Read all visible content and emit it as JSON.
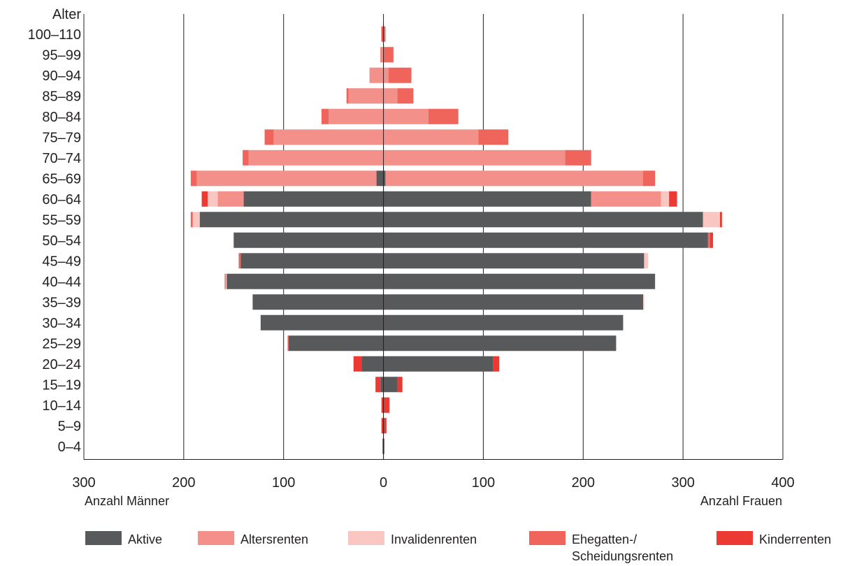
{
  "chart_data": {
    "type": "bar",
    "subtype": "population-pyramid-stacked",
    "yaxis_title": "Alter",
    "left_label": "Anzahl Männer",
    "right_label": "Anzahl Frauen",
    "x_ticks": [
      {
        "value": -300,
        "label": "300"
      },
      {
        "value": -200,
        "label": "200"
      },
      {
        "value": -100,
        "label": "100"
      },
      {
        "value": 0,
        "label": "0"
      },
      {
        "value": 100,
        "label": "100"
      },
      {
        "value": 200,
        "label": "200"
      },
      {
        "value": 300,
        "label": "300"
      },
      {
        "value": 400,
        "label": "400"
      }
    ],
    "xlim": [
      -300,
      400
    ],
    "grid": true,
    "legend_position": "bottom",
    "categories": [
      "0–4",
      "5–9",
      "10–14",
      "15–19",
      "20–24",
      "25–29",
      "30–34",
      "35–39",
      "40–44",
      "45–49",
      "50–54",
      "55–59",
      "60–64",
      "65–69",
      "70–74",
      "75–79",
      "80–84",
      "85–89",
      "90–94",
      "95–99",
      "100–110"
    ],
    "series": [
      {
        "name": "Aktive",
        "color": "#58595b",
        "men": [
          0,
          0,
          0,
          3,
          22,
          95,
          123,
          131,
          157,
          143,
          150,
          184,
          140,
          7,
          0,
          0,
          0,
          0,
          0,
          0,
          0
        ],
        "women": [
          0,
          0,
          0,
          14,
          110,
          233,
          240,
          260,
          272,
          261,
          325,
          320,
          208,
          2,
          0,
          0,
          0,
          0,
          0,
          0,
          0
        ]
      },
      {
        "name": "Altersrenten",
        "color": "#f4908a",
        "men": [
          0,
          0,
          0,
          0,
          0,
          0,
          0,
          0,
          0,
          0,
          0,
          0,
          26,
          180,
          135,
          110,
          55,
          35,
          14,
          2,
          0
        ],
        "women": [
          0,
          0,
          0,
          0,
          0,
          0,
          0,
          0,
          0,
          0,
          0,
          0,
          70,
          258,
          182,
          95,
          45,
          14,
          5,
          0,
          0
        ]
      },
      {
        "name": "Invalidenrenten",
        "color": "#fac6c2",
        "men": [
          0,
          0,
          0,
          0,
          0,
          0,
          0,
          0,
          1,
          0,
          0,
          7,
          10,
          0,
          0,
          0,
          0,
          0,
          0,
          0,
          0
        ],
        "women": [
          0,
          0,
          0,
          0,
          0,
          0,
          0,
          1,
          0,
          4,
          0,
          17,
          8,
          0,
          0,
          0,
          0,
          0,
          0,
          0,
          0
        ]
      },
      {
        "name": "Ehegatten-/\nScheidungsrenten",
        "color": "#ef645b",
        "men": [
          0,
          0,
          0,
          0,
          0,
          1,
          0,
          0,
          1,
          2,
          0,
          2,
          0,
          6,
          6,
          9,
          7,
          2,
          0,
          1,
          1
        ],
        "women": [
          0,
          0,
          0,
          0,
          0,
          0,
          0,
          0,
          0,
          0,
          2,
          0,
          0,
          12,
          26,
          30,
          30,
          16,
          23,
          10,
          2
        ]
      },
      {
        "name": "Kinderrenten",
        "color": "#ec3a33",
        "men": [
          1,
          2,
          2,
          5,
          8,
          0,
          0,
          0,
          0,
          0,
          0,
          0,
          6,
          0,
          0,
          0,
          0,
          0,
          0,
          0,
          1
        ],
        "women": [
          1,
          3,
          6,
          5,
          6,
          0,
          0,
          0,
          0,
          0,
          3,
          2,
          8,
          0,
          0,
          0,
          0,
          0,
          0,
          0,
          0
        ]
      }
    ]
  }
}
